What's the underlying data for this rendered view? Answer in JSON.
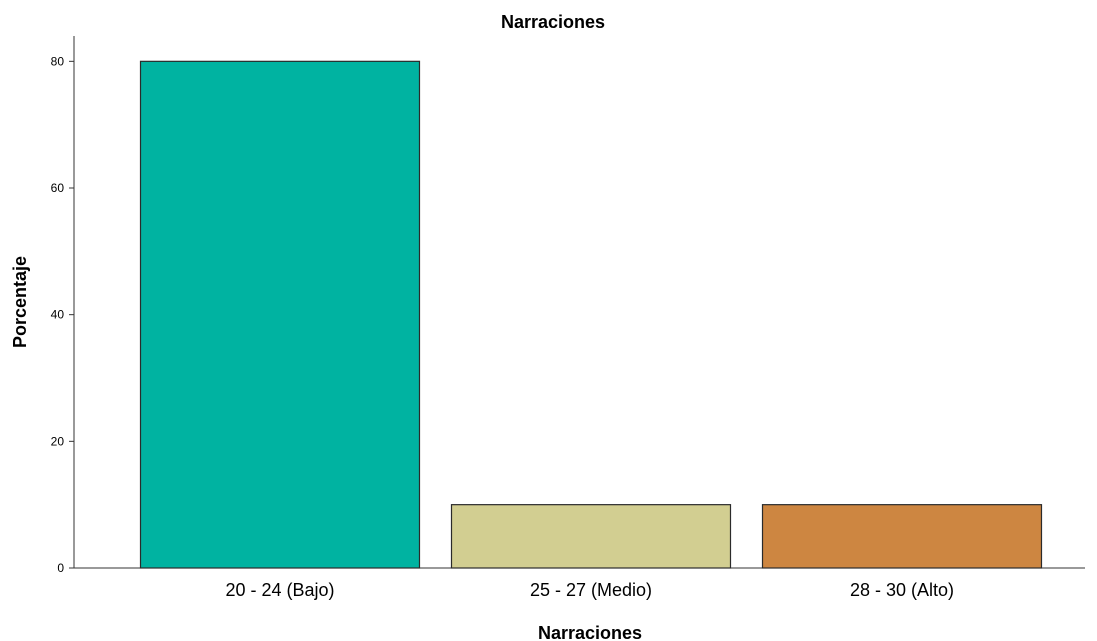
{
  "chart_data": {
    "type": "bar",
    "title": "Narraciones",
    "xlabel": "Narraciones",
    "ylabel": "Porcentaje",
    "categories": [
      "20 - 24 (Bajo)",
      "25 - 27 (Medio)",
      "28 - 30 (Alto)"
    ],
    "values": [
      80,
      10,
      10
    ],
    "colors": [
      "#00b3a1",
      "#d2ce91",
      "#cd8641"
    ],
    "ylim": [
      0,
      84
    ],
    "yticks": [
      "0",
      "20",
      "40",
      "60",
      "80"
    ],
    "grid": false,
    "legend": "none"
  }
}
